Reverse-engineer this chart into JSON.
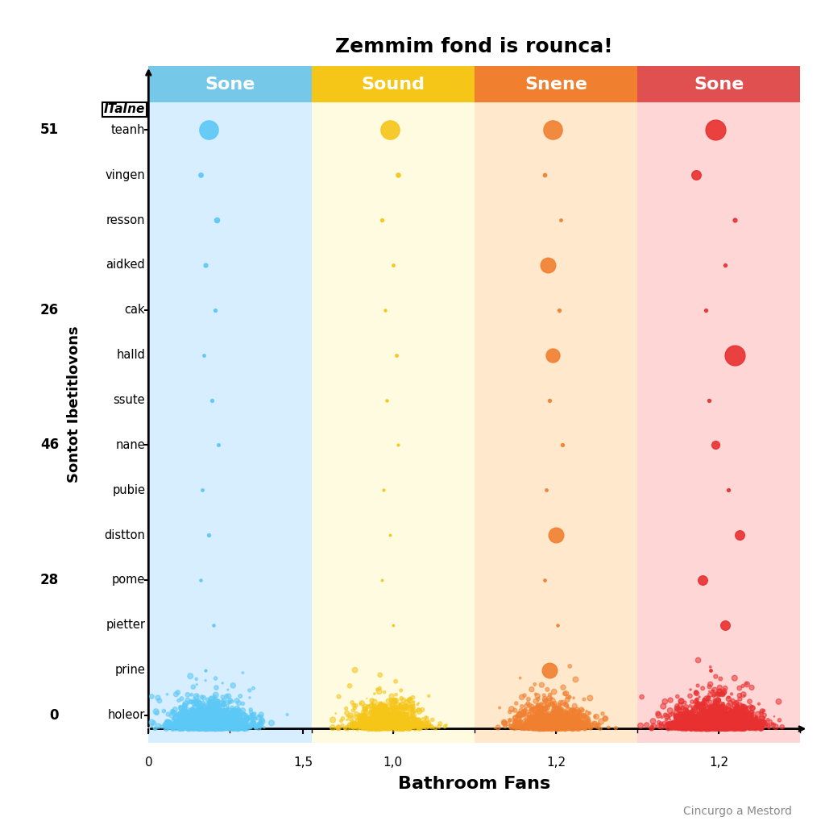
{
  "title": "Zemmim fond is rounca!",
  "xlabel": "Bathroom Fans",
  "ylabel": "Sontot Ibetitlovons",
  "categories_header": "ITaIne",
  "y_labels": [
    "holeor",
    "prine",
    "pietter",
    "pome",
    "distton",
    "pubie",
    "nane",
    "ssute",
    "halld",
    "cak",
    "aidked",
    "resson",
    "vingen",
    "teanh"
  ],
  "section_labels": [
    "Sone",
    "Sound",
    "Snene",
    "Sone"
  ],
  "section_bg_colors": [
    "#D6EEFF",
    "#FFFBE0",
    "#FFE8CC",
    "#FFD6D6"
  ],
  "section_header_colors": [
    "#75C8E8",
    "#F5C518",
    "#F08030",
    "#E05050"
  ],
  "dot_colors": [
    "#5BC8F5",
    "#F5C518",
    "#F08030",
    "#E83030"
  ],
  "ytick_labels": [
    "0",
    "28",
    "46",
    "26",
    "51"
  ],
  "xtick_labels_per_section": [
    [
      "0",
      "1,5"
    ],
    [
      "1,0"
    ],
    [
      "1,2"
    ],
    [
      "1,2"
    ]
  ]
}
